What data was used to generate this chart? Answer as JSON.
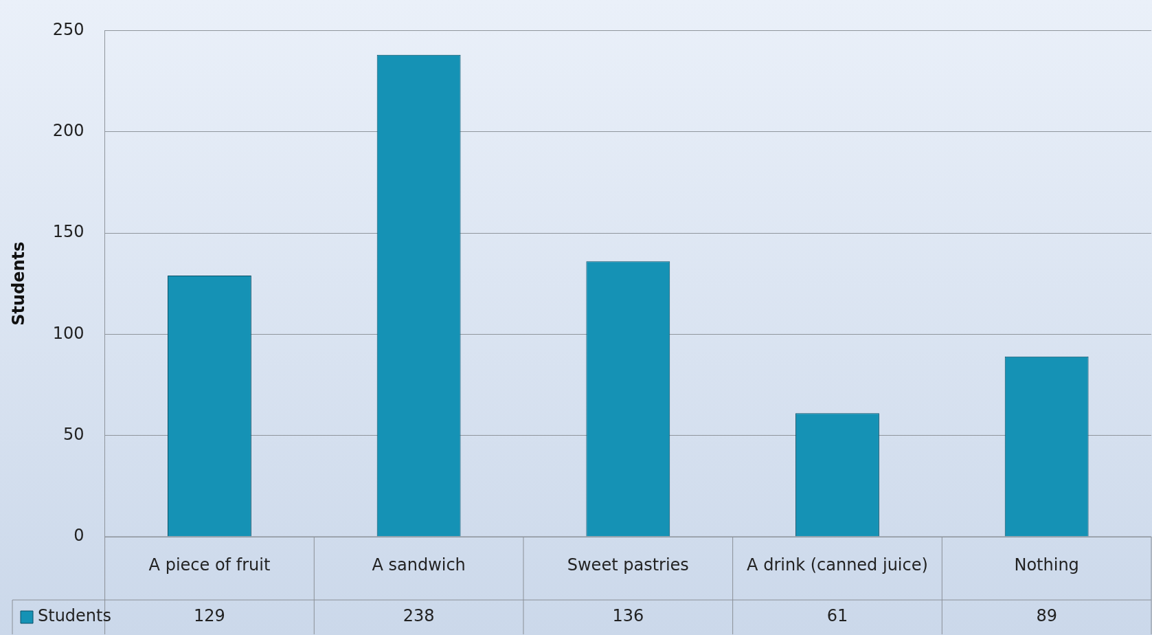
{
  "chart_data": {
    "type": "bar",
    "ylabel": "Students",
    "categories": [
      "A piece of fruit",
      "A sandwich",
      "Sweet pastries",
      "A drink (canned juice)",
      "Nothing"
    ],
    "series": [
      {
        "name": "Students",
        "color": "#1592b5",
        "values": [
          129,
          238,
          136,
          61,
          89
        ]
      }
    ],
    "ylim": [
      0,
      250
    ],
    "yticks": [
      0,
      50,
      100,
      150,
      200,
      250
    ],
    "grid": "y",
    "legend": "bottom",
    "data_labels": true
  }
}
